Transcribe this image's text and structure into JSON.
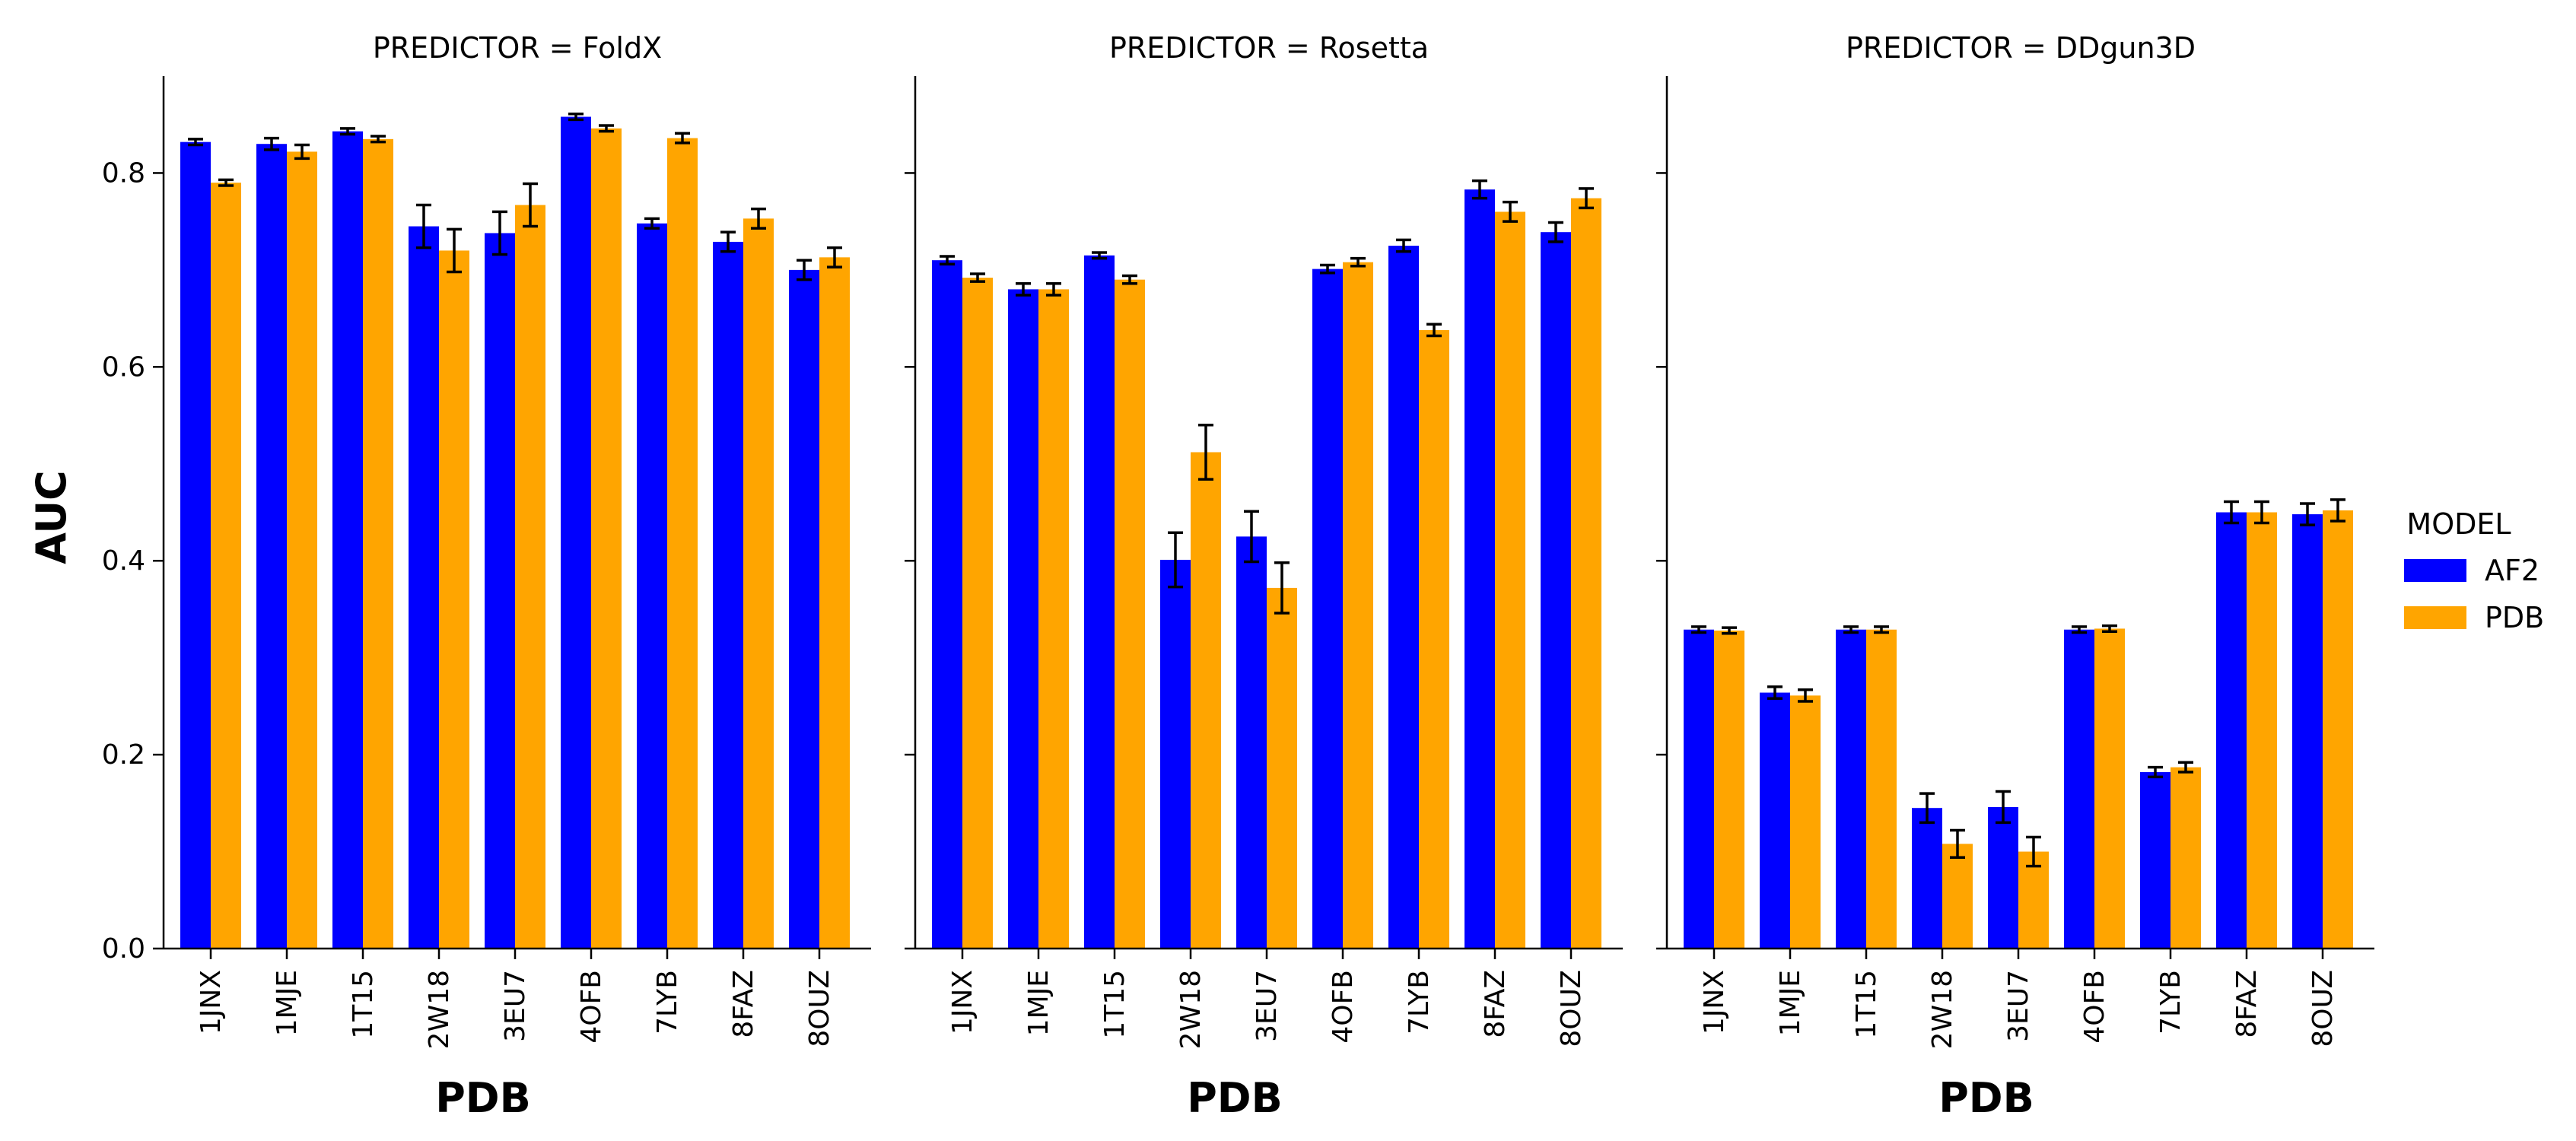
{
  "chart_data": {
    "type": "bar",
    "ylabel": "AUC",
    "xlabel": "PDB",
    "ylim": [
      0,
      0.9
    ],
    "yticks": [
      "0.0",
      "0.2",
      "0.4",
      "0.6",
      "0.8"
    ],
    "categories": [
      "1JNX",
      "1MJE",
      "1T15",
      "2W18",
      "3EU7",
      "4OFB",
      "7LYB",
      "8FAZ",
      "8OUZ"
    ],
    "legend": {
      "title": "MODEL",
      "placement": "right",
      "entries": [
        {
          "label": "AF2",
          "color": "#0000ff"
        },
        {
          "label": "PDB",
          "color": "#ffa500"
        }
      ]
    },
    "error_bars": true,
    "panels": [
      {
        "title": "PREDICTOR = FoldX",
        "series": [
          {
            "name": "AF2",
            "values": [
              0.832,
              0.83,
              0.843,
              0.745,
              0.738,
              0.858,
              0.748,
              0.729,
              0.7
            ],
            "errors": [
              0.003,
              0.006,
              0.003,
              0.022,
              0.022,
              0.003,
              0.005,
              0.01,
              0.01
            ]
          },
          {
            "name": "PDB",
            "values": [
              0.79,
              0.822,
              0.835,
              0.72,
              0.767,
              0.846,
              0.836,
              0.753,
              0.713
            ],
            "errors": [
              0.003,
              0.007,
              0.003,
              0.022,
              0.022,
              0.003,
              0.005,
              0.01,
              0.01
            ]
          }
        ]
      },
      {
        "title": "PREDICTOR = Rosetta",
        "series": [
          {
            "name": "AF2",
            "values": [
              0.71,
              0.68,
              0.715,
              0.401,
              0.425,
              0.701,
              0.725,
              0.783,
              0.739
            ],
            "errors": [
              0.004,
              0.006,
              0.003,
              0.028,
              0.026,
              0.004,
              0.006,
              0.009,
              0.01
            ]
          },
          {
            "name": "PDB",
            "values": [
              0.692,
              0.68,
              0.69,
              0.512,
              0.372,
              0.708,
              0.638,
              0.76,
              0.774
            ],
            "errors": [
              0.004,
              0.006,
              0.004,
              0.028,
              0.026,
              0.004,
              0.006,
              0.01,
              0.01
            ]
          }
        ]
      },
      {
        "title": "PREDICTOR = DDgun3D",
        "series": [
          {
            "name": "AF2",
            "values": [
              0.329,
              0.264,
              0.329,
              0.145,
              0.146,
              0.329,
              0.182,
              0.45,
              0.448
            ],
            "errors": [
              0.003,
              0.006,
              0.003,
              0.015,
              0.016,
              0.003,
              0.005,
              0.011,
              0.011
            ]
          },
          {
            "name": "PDB",
            "values": [
              0.328,
              0.261,
              0.329,
              0.108,
              0.1,
              0.33,
              0.187,
              0.45,
              0.452
            ],
            "errors": [
              0.003,
              0.006,
              0.003,
              0.014,
              0.015,
              0.003,
              0.005,
              0.011,
              0.011
            ]
          }
        ]
      }
    ]
  }
}
